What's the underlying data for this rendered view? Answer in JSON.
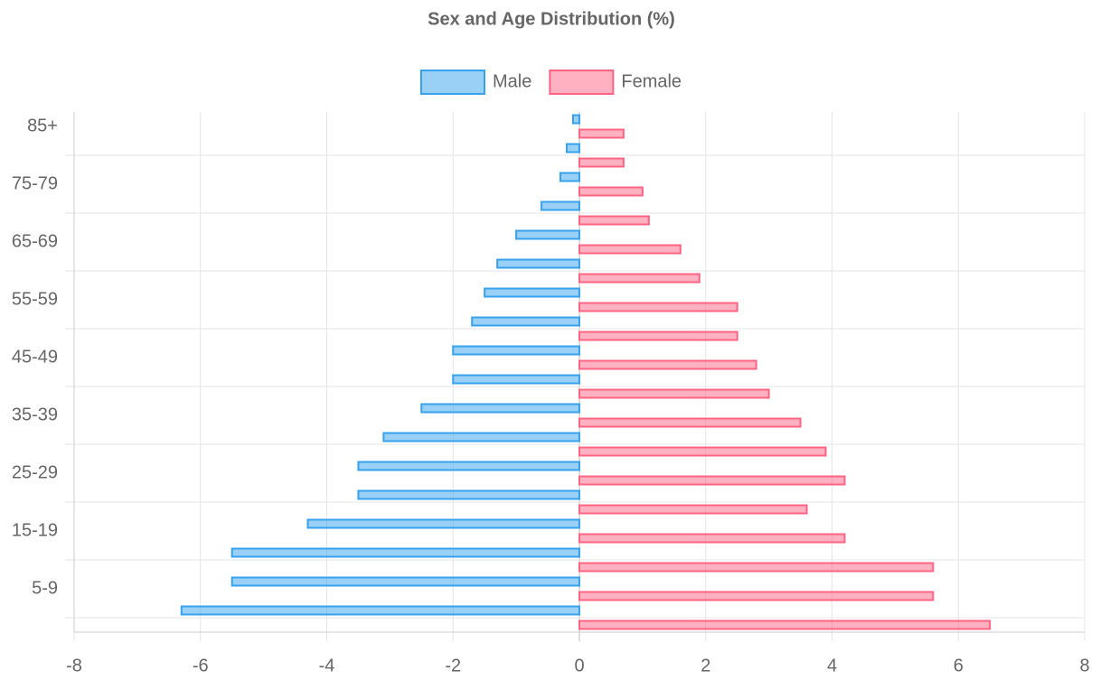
{
  "chart_data": {
    "type": "bar",
    "orientation": "horizontal",
    "title": "Sex and Age Distribution (%)",
    "categories": [
      "85+",
      null,
      "75-79",
      null,
      "65-69",
      null,
      "55-59",
      null,
      "45-49",
      null,
      "35-39",
      null,
      "25-29",
      null,
      "15-19",
      null,
      "5-9",
      null
    ],
    "series": [
      {
        "name": "Male",
        "color": "#36a2eb",
        "values": [
          -0.1,
          -0.2,
          -0.3,
          -0.6,
          -1.0,
          -1.3,
          -1.5,
          -1.7,
          -2.0,
          -2.0,
          -2.5,
          -3.1,
          -3.5,
          -3.5,
          -4.3,
          -5.5,
          -5.5,
          -6.3
        ]
      },
      {
        "name": "Female",
        "color": "#ff6384",
        "values": [
          0.7,
          0.7,
          1.0,
          1.1,
          1.6,
          1.9,
          2.5,
          2.5,
          2.8,
          3.0,
          3.5,
          3.9,
          4.2,
          3.6,
          4.2,
          5.6,
          5.6,
          6.5
        ]
      }
    ],
    "xlim": [
      -8,
      8
    ],
    "xticks": [
      -8,
      -6,
      -4,
      -2,
      0,
      2,
      4,
      6,
      8
    ],
    "grid": true,
    "legend": "top"
  }
}
